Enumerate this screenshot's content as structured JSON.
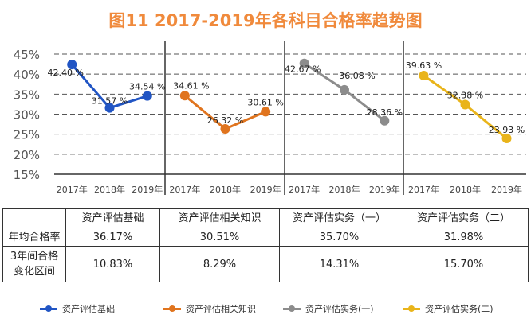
{
  "chart_data": {
    "type": "line",
    "title": "图11  2017-2019年各科目合格率趋势图",
    "categories": [
      "2017年",
      "2018年",
      "2019年"
    ],
    "ylim": [
      15,
      45
    ],
    "yticks": [
      "45%",
      "40%",
      "35%",
      "30%",
      "25%",
      "20%",
      "15%"
    ],
    "yticks_values": [
      45,
      40,
      35,
      30,
      25,
      20,
      15
    ],
    "grid": true,
    "legend_placement": "bottom",
    "series": [
      {
        "name": "资产评估基础",
        "color": "#2155C4",
        "values": [
          42.4,
          31.57,
          34.54
        ],
        "labels": [
          "42.40 %",
          "31.57 %",
          "34.54 %"
        ]
      },
      {
        "name": "资产评估相关知识",
        "color": "#E0741E",
        "values": [
          34.61,
          26.32,
          30.61
        ],
        "labels": [
          "34.61 %",
          "26.32 %",
          "30.61 %"
        ]
      },
      {
        "name": "资产评估实务(一)",
        "color": "#8C8C8C",
        "values": [
          42.67,
          36.08,
          28.36
        ],
        "labels": [
          "42.67 %",
          "36.08 %",
          "28.36 %"
        ]
      },
      {
        "name": "资产评估实务(二)",
        "color": "#E9B41A",
        "values": [
          39.63,
          32.38,
          23.93
        ],
        "labels": [
          "39.63 %",
          "32.38 %",
          "23.93 %"
        ]
      }
    ]
  },
  "table": {
    "headers": [
      "",
      "资产评估基础",
      "资产评估相关知识",
      "资产评估实务（一）",
      "资产评估实务（二）"
    ],
    "rows": [
      {
        "label": "年均合格率",
        "values": [
          "36.17%",
          "30.51%",
          "35.70%",
          "31.98%"
        ]
      },
      {
        "label": "3年间合格变化区间",
        "values": [
          "10.83%",
          "8.29%",
          "14.31%",
          "15.70%"
        ]
      }
    ]
  }
}
